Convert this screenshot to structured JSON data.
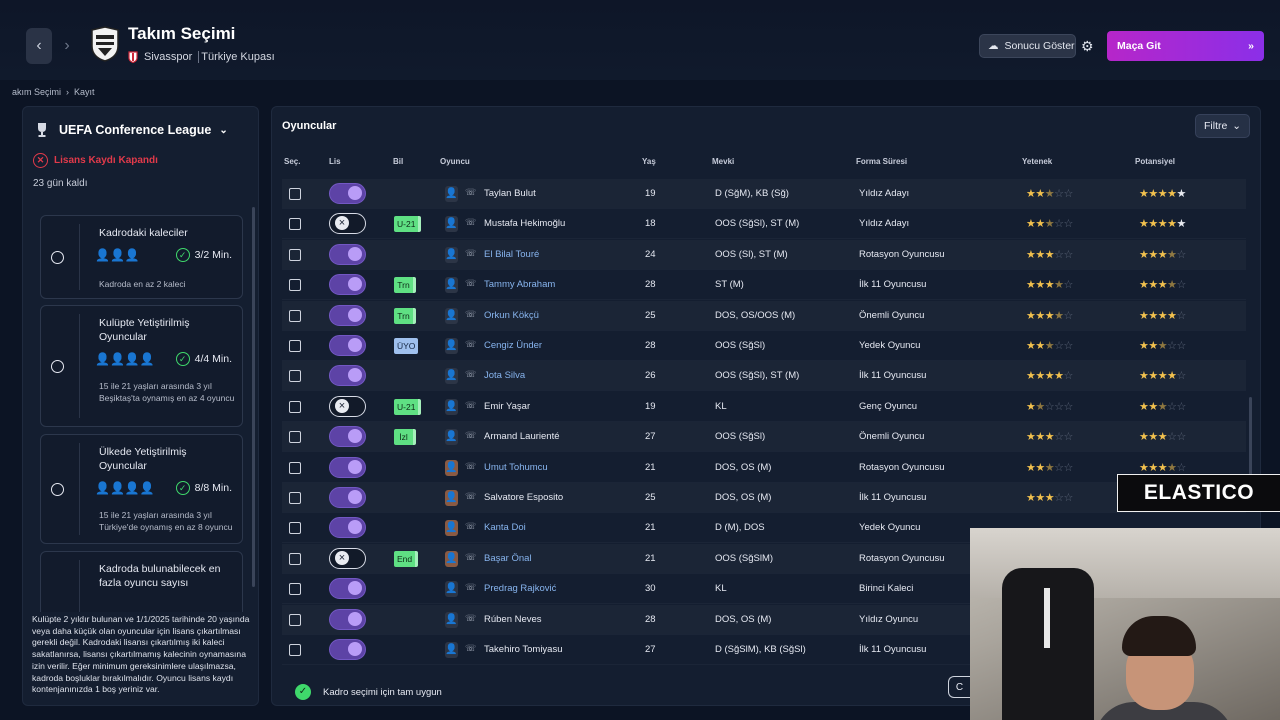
{
  "header": {
    "title": "Takım Seçimi",
    "club": "Sivasspor",
    "competition": "Türkiye Kupası",
    "show_result_label": "Sonucu Göster",
    "go_match_label": "Maça Git"
  },
  "breadcrumb": {
    "first": "akım Seçimi",
    "second": "Kayıt"
  },
  "left": {
    "league": "UEFA Conference League",
    "license_status": "Lisans Kaydı Kapandı",
    "days_left": "23 gün kaldı",
    "requirements": [
      {
        "title": "Kadrodaki kaleciler",
        "count": "3/2 Min.",
        "desc": "Kadroda en az 2 kaleci"
      },
      {
        "title": "Kulüpte Yetiştirilmiş Oyuncular",
        "count": "4/4 Min.",
        "desc": "15 ile 21 yaşları arasında 3 yıl Beşiktaş'ta oynamış en az 4 oyuncu"
      },
      {
        "title": "Ülkede Yetiştirilmiş Oyuncular",
        "count": "8/8 Min.",
        "desc": "15 ile 21 yaşları arasında 3 yıl Türkiye'de oynamış en az 8 oyuncu"
      },
      {
        "title": "Kadroda bulunabilecek en fazla oyuncu sayısı",
        "count": "",
        "desc": ""
      }
    ],
    "rules": "Kulüpte 2 yıldır bulunan ve 1/1/2025 tarihinde 20 yaşında veya daha küçük olan oyuncular için lisans çıkartılması gerekli değil. Kadrodaki lisansı çıkartılmış iki kaleci sakatlanırsa, lisansı çıkartılmamış kalecinin oynamasına izin verilir. Eğer minimum gereksinimlere ulaşılmazsa, kadroda boşluklar bırakılmalıdır. Oyuncu lisans kaydı kontenjanınızda 1 boş yeriniz var."
  },
  "players_panel": {
    "title": "Oyuncular",
    "filter_label": "Filtre",
    "columns": {
      "select": "Seç.",
      "license": "Lis",
      "info": "Bil",
      "player": "Oyuncu",
      "age": "Yaş",
      "position": "Mevki",
      "role": "Forma Süresi",
      "ability": "Yetenek",
      "potential": "Potansiyel"
    },
    "footer_status": "Kadro seçimi için tam uygun"
  },
  "players": [
    {
      "name": "Taylan Bulut",
      "link": false,
      "age": "19",
      "position": "D (SğM), KB (Sğ)",
      "role": "Yıldız Adayı",
      "license": true,
      "badge": "",
      "ability": 2.5,
      "potential": 4.5,
      "photo": false
    },
    {
      "name": "Mustafa Hekimoğlu",
      "link": false,
      "age": "18",
      "position": "OOS (SğSl), ST (M)",
      "role": "Yıldız Adayı",
      "license": false,
      "badge": "U-21",
      "ability": 2.5,
      "potential": 4.5,
      "photo": false
    },
    {
      "name": "El Bilal Touré",
      "link": true,
      "age": "24",
      "position": "OOS (Sl), ST (M)",
      "role": "Rotasyon Oyuncusu",
      "license": true,
      "badge": "",
      "ability": 3,
      "potential": 3.5,
      "photo": false
    },
    {
      "name": "Tammy Abraham",
      "link": true,
      "age": "28",
      "position": "ST (M)",
      "role": "İlk 11 Oyuncusu",
      "license": true,
      "badge": "Trn",
      "ability": 3.5,
      "potential": 3.5,
      "photo": false
    },
    {
      "name": "Orkun Kökçü",
      "link": true,
      "age": "25",
      "position": "DOS, OS/OOS (M)",
      "role": "Önemli Oyuncu",
      "license": true,
      "badge": "Trn",
      "ability": 3.5,
      "potential": 4,
      "photo": false
    },
    {
      "name": "Cengiz Ünder",
      "link": true,
      "age": "28",
      "position": "OOS (SğSl)",
      "role": "Yedek Oyuncu",
      "license": true,
      "badge": "ÜYO",
      "ability": 2.5,
      "potential": 2.5,
      "photo": false
    },
    {
      "name": "Jota Silva",
      "link": true,
      "age": "26",
      "position": "OOS (SğSl), ST (M)",
      "role": "İlk 11 Oyuncusu",
      "license": true,
      "badge": "",
      "ability": 4,
      "potential": 4,
      "photo": false
    },
    {
      "name": "Emir Yaşar",
      "link": false,
      "age": "19",
      "position": "KL",
      "role": "Genç Oyuncu",
      "license": false,
      "badge": "U-21",
      "ability": 1.5,
      "potential": 2.5,
      "photo": false
    },
    {
      "name": "Armand Laurienté",
      "link": false,
      "age": "27",
      "position": "OOS (SğSl)",
      "role": "Önemli Oyuncu",
      "license": true,
      "badge": "İzl",
      "ability": 3,
      "potential": 3,
      "photo": false
    },
    {
      "name": "Umut Tohumcu",
      "link": true,
      "age": "21",
      "position": "DOS, OS (M)",
      "role": "Rotasyon Oyuncusu",
      "license": true,
      "badge": "",
      "ability": 2.5,
      "potential": 3.5,
      "photo": true
    },
    {
      "name": "Salvatore Esposito",
      "link": false,
      "age": "25",
      "position": "DOS, OS (M)",
      "role": "İlk 11 Oyuncusu",
      "license": true,
      "badge": "",
      "ability": 3,
      "potential": 0,
      "photo": true
    },
    {
      "name": "Kanta Doi",
      "link": true,
      "age": "21",
      "position": "D (M), DOS",
      "role": "Yedek Oyuncu",
      "license": true,
      "badge": "",
      "ability": 0,
      "potential": 0,
      "photo": true
    },
    {
      "name": "Başar Önal",
      "link": true,
      "age": "21",
      "position": "OOS (SğSlM)",
      "role": "Rotasyon Oyuncusu",
      "license": false,
      "badge": "End",
      "ability": 0,
      "potential": 0,
      "photo": true
    },
    {
      "name": "Predrag Rajković",
      "link": true,
      "age": "30",
      "position": "KL",
      "role": "Birinci Kaleci",
      "license": true,
      "badge": "",
      "ability": 0,
      "potential": 0,
      "photo": false
    },
    {
      "name": "Rúben Neves",
      "link": false,
      "age": "28",
      "position": "DOS, OS (M)",
      "role": "Yıldız Oyuncu",
      "license": true,
      "badge": "",
      "ability": 0,
      "potential": 0,
      "photo": false
    },
    {
      "name": "Takehiro Tomiyasu",
      "link": false,
      "age": "27",
      "position": "D (SğSlM), KB (SğSl)",
      "role": "İlk 11 Oyuncusu",
      "license": true,
      "badge": "",
      "ability": 0,
      "potential": 0,
      "photo": false
    }
  ],
  "overlay": {
    "logo_text": "ELASTICO"
  },
  "colors": {
    "accent_start": "#b626c9",
    "accent_end": "#8b2fe8",
    "success": "#3fd86b",
    "error": "#e13a4a",
    "star": "#f2c14e"
  }
}
